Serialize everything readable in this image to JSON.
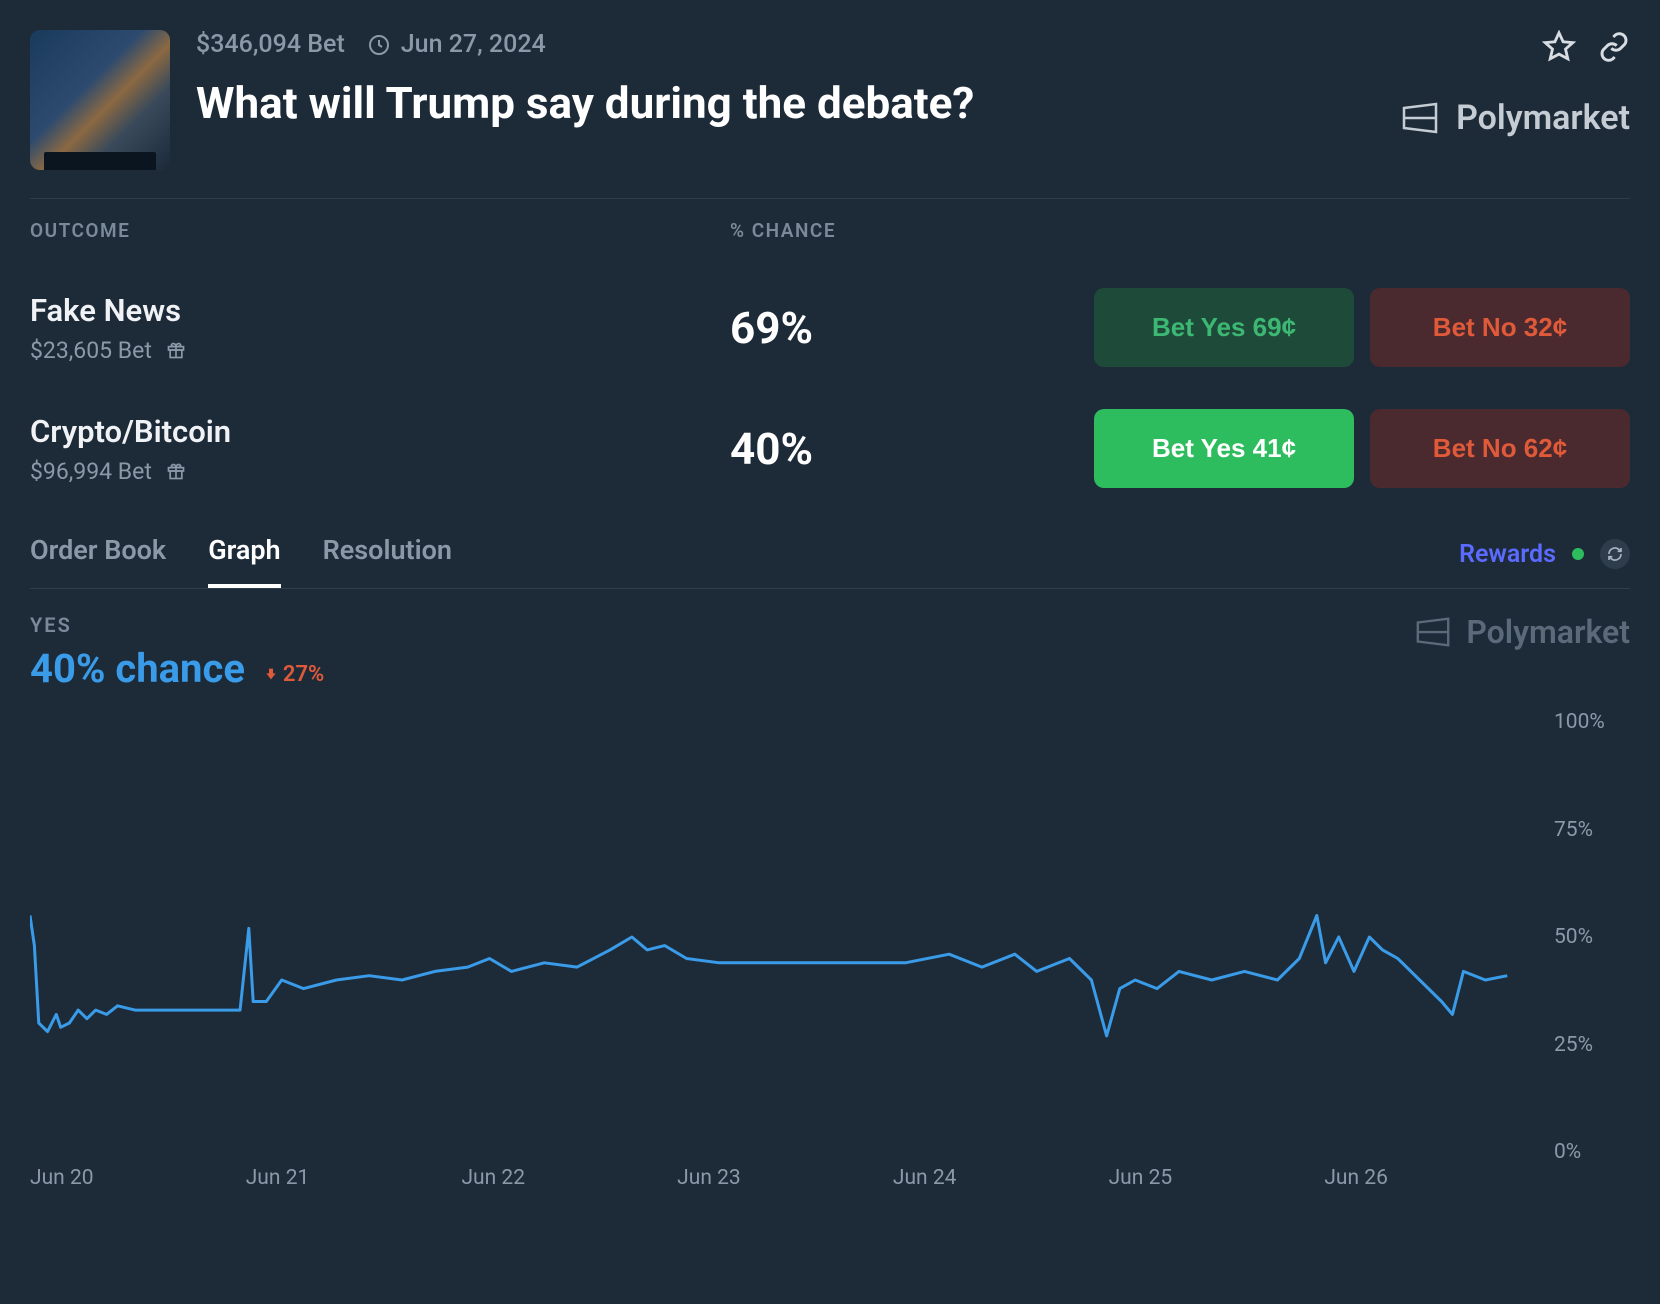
{
  "colors": {
    "background": "#1d2b39",
    "border": "#2e3d4c",
    "text_muted": "#8b98a8",
    "text_primary": "#ffffff",
    "brand": "#c5ccd4",
    "brand_faded": "#5a6a7a",
    "yes_dim_bg": "#1e4a3a",
    "yes_dim_fg": "#3db873",
    "no_dim_bg": "#4a2a2e",
    "no_dim_fg": "#e05a3a",
    "yes_bright_bg": "#2ebd5e",
    "rewards": "#5b6bff",
    "status_dot": "#2ebd5e",
    "chart_line": "#3a9be8",
    "delta_down": "#e05a3a"
  },
  "header": {
    "volume": "$346,094 Bet",
    "date": "Jun 27, 2024",
    "title": "What will Trump say during the debate?",
    "brand": "Polymarket"
  },
  "columns": {
    "outcome": "OUTCOME",
    "chance": "% CHANCE"
  },
  "outcomes": [
    {
      "name": "Fake News",
      "bet": "$23,605 Bet",
      "chance": "69%",
      "yes_label": "Bet Yes 69¢",
      "no_label": "Bet No 32¢",
      "yes_style": "dim",
      "no_style": "dim"
    },
    {
      "name": "Crypto/Bitcoin",
      "bet": "$96,994 Bet",
      "chance": "40%",
      "yes_label": "Bet Yes 41¢",
      "no_label": "Bet No 62¢",
      "yes_style": "bright",
      "no_style": "dim"
    }
  ],
  "tabs": {
    "items": [
      "Order Book",
      "Graph",
      "Resolution"
    ],
    "active": "Graph",
    "rewards": "Rewards"
  },
  "graph": {
    "yes_label": "YES",
    "chance_text": "40% chance",
    "delta_text": "27%",
    "delta_direction": "down",
    "brand": "Polymarket",
    "chart": {
      "type": "line",
      "line_color": "#3a9be8",
      "line_width": 3,
      "background": "#1d2b39",
      "ylim": [
        0,
        100
      ],
      "y_ticks": [
        0,
        25,
        50,
        75,
        100
      ],
      "y_tick_labels": [
        "0%",
        "25%",
        "50%",
        "75%",
        "100%"
      ],
      "x_labels": [
        "Jun 20",
        "Jun 21",
        "Jun 22",
        "Jun 23",
        "Jun 24",
        "Jun 25",
        "Jun 26"
      ],
      "series": [
        {
          "x": 0.0,
          "y": 55
        },
        {
          "x": 0.02,
          "y": 48
        },
        {
          "x": 0.04,
          "y": 30
        },
        {
          "x": 0.08,
          "y": 28
        },
        {
          "x": 0.12,
          "y": 32
        },
        {
          "x": 0.14,
          "y": 29
        },
        {
          "x": 0.18,
          "y": 30
        },
        {
          "x": 0.22,
          "y": 33
        },
        {
          "x": 0.26,
          "y": 31
        },
        {
          "x": 0.3,
          "y": 33
        },
        {
          "x": 0.35,
          "y": 32
        },
        {
          "x": 0.4,
          "y": 34
        },
        {
          "x": 0.48,
          "y": 33
        },
        {
          "x": 0.62,
          "y": 33
        },
        {
          "x": 0.8,
          "y": 33
        },
        {
          "x": 0.96,
          "y": 33
        },
        {
          "x": 1.0,
          "y": 52
        },
        {
          "x": 1.02,
          "y": 35
        },
        {
          "x": 1.08,
          "y": 35
        },
        {
          "x": 1.15,
          "y": 40
        },
        {
          "x": 1.25,
          "y": 38
        },
        {
          "x": 1.4,
          "y": 40
        },
        {
          "x": 1.55,
          "y": 41
        },
        {
          "x": 1.7,
          "y": 40
        },
        {
          "x": 1.85,
          "y": 42
        },
        {
          "x": 2.0,
          "y": 43
        },
        {
          "x": 2.1,
          "y": 45
        },
        {
          "x": 2.2,
          "y": 42
        },
        {
          "x": 2.35,
          "y": 44
        },
        {
          "x": 2.5,
          "y": 43
        },
        {
          "x": 2.65,
          "y": 47
        },
        {
          "x": 2.75,
          "y": 50
        },
        {
          "x": 2.82,
          "y": 47
        },
        {
          "x": 2.9,
          "y": 48
        },
        {
          "x": 3.0,
          "y": 45
        },
        {
          "x": 3.15,
          "y": 44
        },
        {
          "x": 3.4,
          "y": 44
        },
        {
          "x": 3.7,
          "y": 44
        },
        {
          "x": 4.0,
          "y": 44
        },
        {
          "x": 4.2,
          "y": 46
        },
        {
          "x": 4.35,
          "y": 43
        },
        {
          "x": 4.5,
          "y": 46
        },
        {
          "x": 4.6,
          "y": 42
        },
        {
          "x": 4.75,
          "y": 45
        },
        {
          "x": 4.85,
          "y": 40
        },
        {
          "x": 4.92,
          "y": 27
        },
        {
          "x": 4.98,
          "y": 38
        },
        {
          "x": 5.05,
          "y": 40
        },
        {
          "x": 5.15,
          "y": 38
        },
        {
          "x": 5.25,
          "y": 42
        },
        {
          "x": 5.4,
          "y": 40
        },
        {
          "x": 5.55,
          "y": 42
        },
        {
          "x": 5.7,
          "y": 40
        },
        {
          "x": 5.8,
          "y": 45
        },
        {
          "x": 5.88,
          "y": 55
        },
        {
          "x": 5.92,
          "y": 44
        },
        {
          "x": 5.98,
          "y": 50
        },
        {
          "x": 6.05,
          "y": 42
        },
        {
          "x": 6.12,
          "y": 50
        },
        {
          "x": 6.18,
          "y": 47
        },
        {
          "x": 6.25,
          "y": 45
        },
        {
          "x": 6.35,
          "y": 40
        },
        {
          "x": 6.45,
          "y": 35
        },
        {
          "x": 6.5,
          "y": 32
        },
        {
          "x": 6.55,
          "y": 42
        },
        {
          "x": 6.65,
          "y": 40
        },
        {
          "x": 6.75,
          "y": 41
        }
      ],
      "x_domain": [
        0,
        6.9
      ]
    }
  }
}
